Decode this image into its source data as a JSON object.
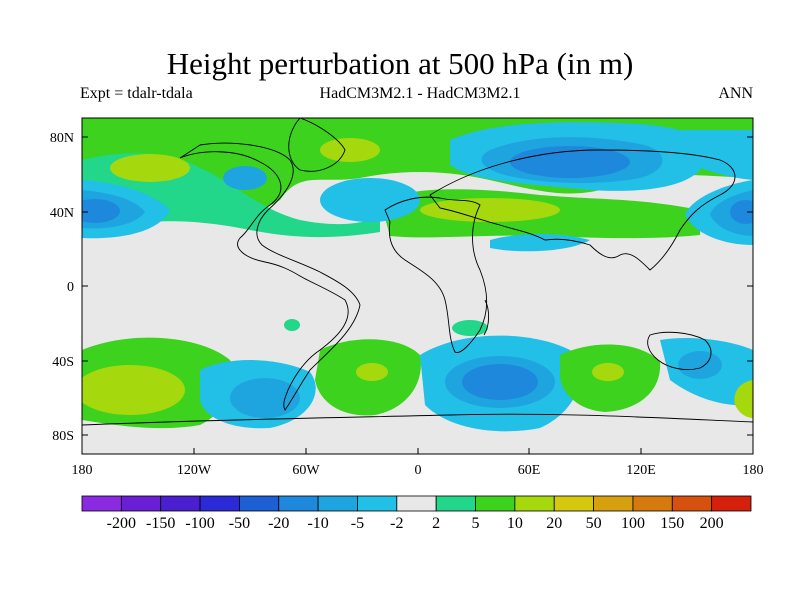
{
  "title": "Height perturbation at 500 hPa (in m)",
  "subtitle_left": "Expt = tdalr-tdala",
  "subtitle_center": "HadCM3M2.1 - HadCM3M2.1",
  "subtitle_right": "ANN",
  "lat_ticks": [
    "80N",
    "40N",
    "0",
    "40S",
    "80S"
  ],
  "lon_ticks": [
    "180",
    "120W",
    "60W",
    "0",
    "60E",
    "120E",
    "180"
  ],
  "colorbar": {
    "colors": [
      "#8a2be2",
      "#6a1fd6",
      "#4b1fd0",
      "#2a2ad6",
      "#1e5fd6",
      "#1e88dd",
      "#1ea5e0",
      "#22c0e6",
      "#e8e8e8",
      "#22d68a",
      "#3cd21e",
      "#a6d80e",
      "#d6c80e",
      "#d6a00e",
      "#d67a0e",
      "#d6500e",
      "#d6200e"
    ],
    "labels": [
      "-200",
      "-150",
      "-100",
      "-50",
      "-20",
      "-10",
      "-5",
      "-2",
      "2",
      "5",
      "10",
      "20",
      "50",
      "100",
      "150",
      "200"
    ]
  },
  "chart_data": {
    "type": "heatmap",
    "title": "Height perturbation at 500 hPa (in m)",
    "x_range": [
      -180,
      180
    ],
    "y_range": [
      -90,
      90
    ],
    "contour_levels": [
      -200,
      -150,
      -100,
      -50,
      -20,
      -10,
      -5,
      -2,
      2,
      5,
      10,
      20,
      50,
      100,
      150,
      200
    ]
  }
}
